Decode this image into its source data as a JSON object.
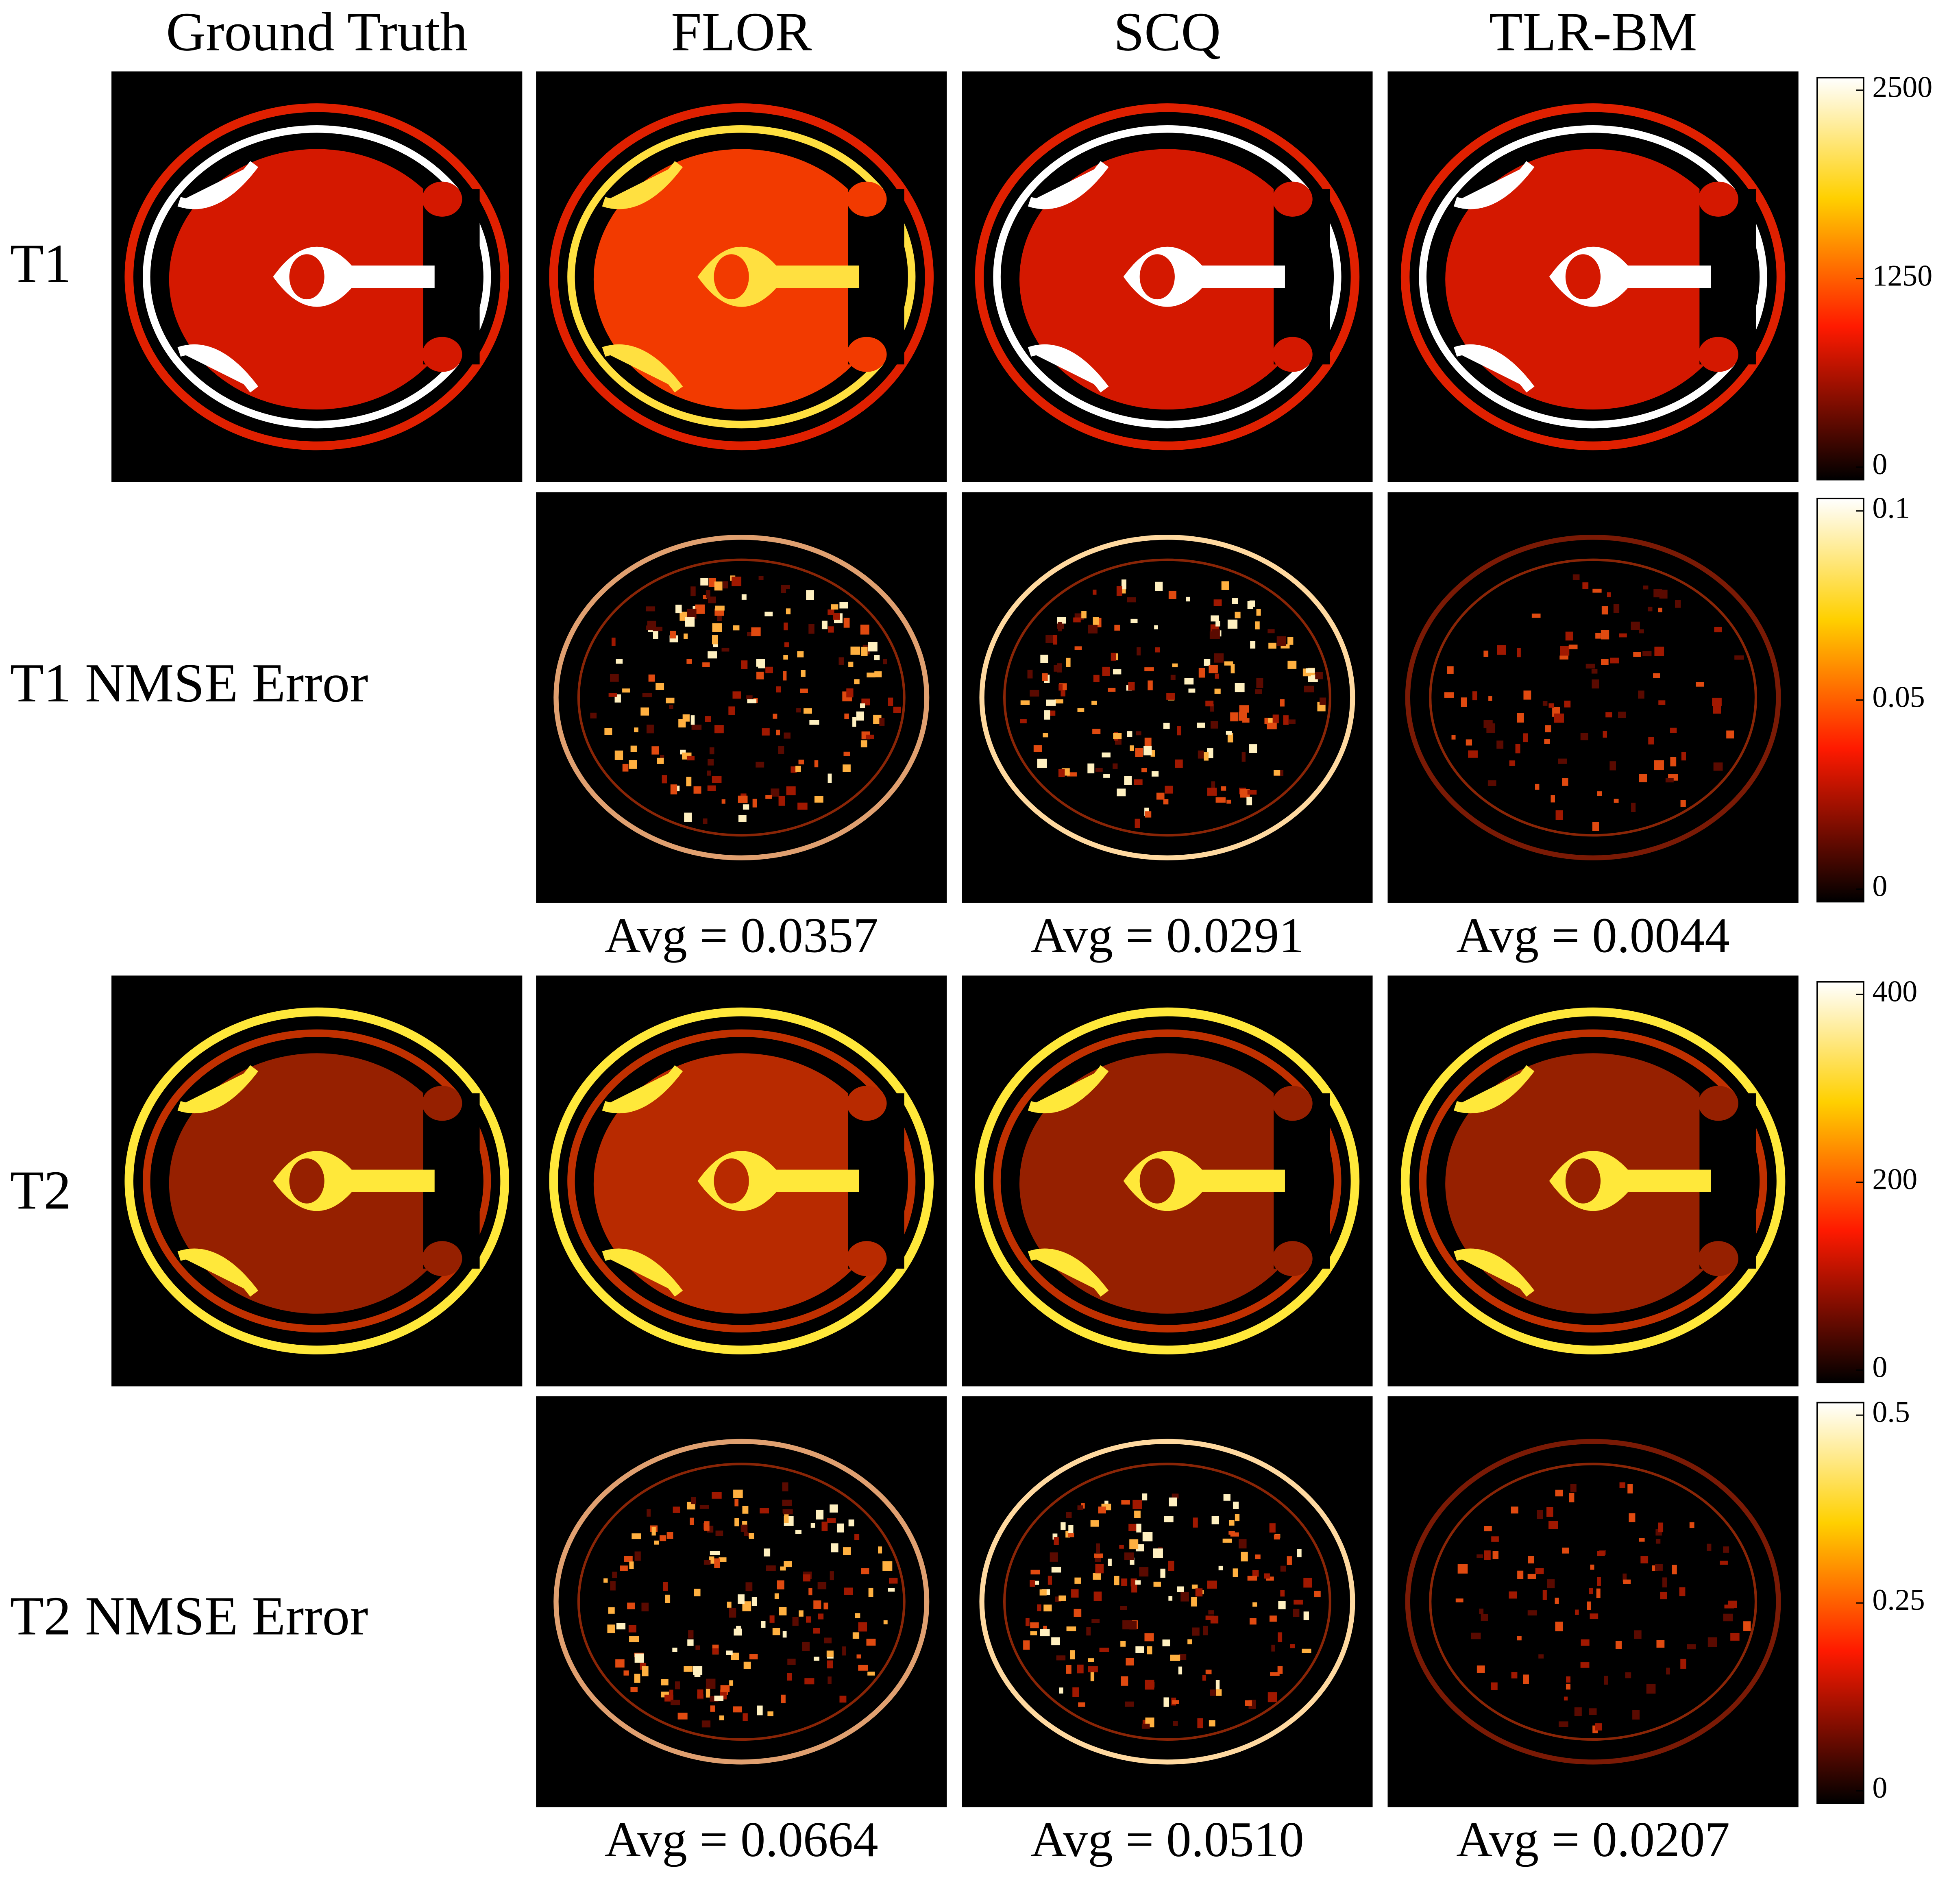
{
  "header": {
    "columns": [
      "Ground Truth",
      "FLOR",
      "SCQ",
      "TLR-BM"
    ]
  },
  "rows": [
    {
      "label": "T1",
      "colorbar": [
        "2500",
        "1250",
        "0"
      ]
    },
    {
      "label": "T1 NMSE Error",
      "colorbar": [
        "0.1",
        "0.05",
        "0"
      ],
      "averages": [
        "Avg = 0.0357",
        "Avg = 0.0291",
        "Avg = 0.0044"
      ]
    },
    {
      "label": "T2",
      "colorbar": [
        "400",
        "200",
        "0"
      ]
    },
    {
      "label": "T2 NMSE Error",
      "colorbar": [
        "0.5",
        "0.25",
        "0"
      ],
      "averages": [
        "Avg = 0.0664",
        "Avg = 0.0510",
        "Avg = 0.0207"
      ]
    }
  ]
}
